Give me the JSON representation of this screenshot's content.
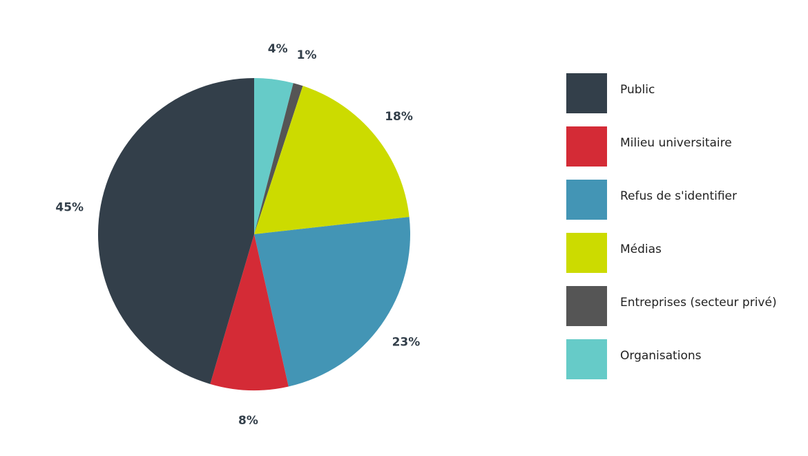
{
  "chart_data": {
    "type": "pie",
    "categories": [
      "Public",
      "Milieu universitaire",
      "Refus de s'identifier",
      "Médias",
      "Entreprises (secteur privé)",
      "Organisations"
    ],
    "values": [
      45,
      8,
      23,
      18,
      1,
      4
    ],
    "value_labels": [
      "45%",
      "8%",
      "23%",
      "18%",
      "1%",
      "4%"
    ],
    "colors": [
      "#333f4a",
      "#d42b36",
      "#4395b5",
      "#ccdb00",
      "#555555",
      "#66cbc8"
    ],
    "legend": "right"
  }
}
